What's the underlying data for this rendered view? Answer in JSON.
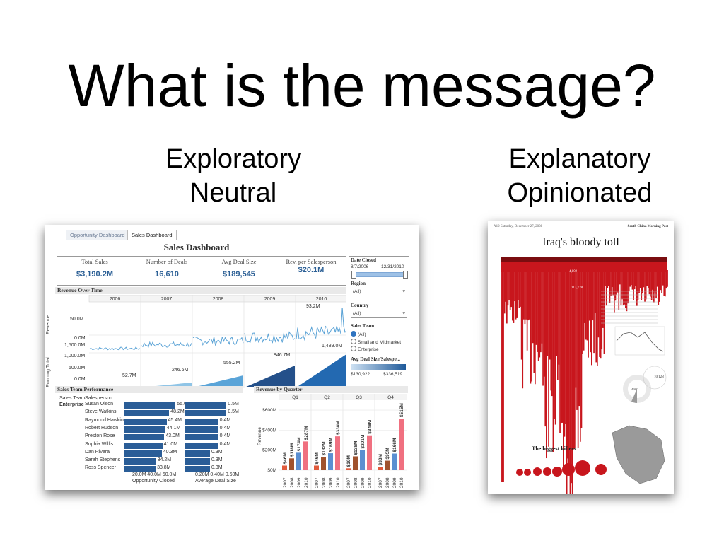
{
  "slide": {
    "title": "What is the message?",
    "left": {
      "line1": "Exploratory",
      "line2": "Neutral"
    },
    "right": {
      "line1": "Explanatory",
      "line2": "Opinionated"
    }
  },
  "dashboard": {
    "tabs": [
      "Opportunity Dashboard",
      "Sales Dashboard"
    ],
    "title": "Sales Dashboard",
    "kpis": [
      {
        "label": "Total Sales",
        "value": "$3,190.2M"
      },
      {
        "label": "Number of Deals",
        "value": "16,610"
      },
      {
        "label": "Avg Deal Size",
        "value": "$189,545"
      },
      {
        "label": "Rev. per Salesperson",
        "value": "$20.1M"
      }
    ],
    "revenue_over_time": {
      "title": "Revenue Over Time",
      "years": [
        "2006",
        "2007",
        "2008",
        "2009",
        "2010"
      ],
      "revenue_axis_label": "Revenue",
      "revenue_ticks": [
        "50.0M",
        "0.0M"
      ],
      "peak_label": "93.2M",
      "running_axis_label": "Running Total",
      "running_ticks": [
        "1,500.0M",
        "1,000.0M",
        "500.0M",
        "0.0M"
      ],
      "running_totals": [
        "52.7M",
        "246.6M",
        "555.2M",
        "846.7M",
        "1,489.0M"
      ]
    },
    "filters": {
      "date_closed": {
        "label": "Date Closed",
        "start": "8/7/2006",
        "end": "12/31/2010"
      },
      "region": {
        "label": "Region",
        "value": "(All)"
      },
      "country": {
        "label": "Country",
        "value": "(All)"
      },
      "sales_team": {
        "label": "Sales Team",
        "options": [
          "(All)",
          "Small and Midmarket",
          "Enterprise"
        ],
        "selected": "(All)"
      },
      "avg_deal": {
        "label": "Avg Deal Size/Salespe...",
        "min": "$130,922",
        "max": "$336,519"
      }
    },
    "team_performance": {
      "title": "Sales Team Performance",
      "col1": "Sales Team",
      "col2": "Salesperson",
      "team": "Enterprise",
      "rows": [
        {
          "name": "Susan Olson",
          "opp": "55.0M",
          "deal": "0.5M"
        },
        {
          "name": "Steve Watkins",
          "opp": "48.2M",
          "deal": "0.5M"
        },
        {
          "name": "Raymond Hawkins",
          "opp": "45.4M",
          "deal": "0.4M"
        },
        {
          "name": "Robert Hudson",
          "opp": "44.1M",
          "deal": "0.4M"
        },
        {
          "name": "Preston Rose",
          "opp": "43.0M",
          "deal": "0.4M"
        },
        {
          "name": "Sophia Willis",
          "opp": "41.0M",
          "deal": "0.4M"
        },
        {
          "name": "Dan Rivera",
          "opp": "40.3M",
          "deal": "0.3M"
        },
        {
          "name": "Sarah Stephens",
          "opp": "34.2M",
          "deal": "0.3M"
        },
        {
          "name": "Ross Spencer",
          "opp": "33.8M",
          "deal": "0.3M"
        }
      ],
      "axis1_ticks": "20.0M 40.0M 60.0M",
      "axis1_label": "Opportunity Closed",
      "axis2_ticks": "0.20M 0.40M 0.60M",
      "axis2_label": "Average Deal Size"
    },
    "revenue_by_quarter": {
      "title": "Revenue by Quarter",
      "quarters": [
        "Q1",
        "Q2",
        "Q3",
        "Q4"
      ],
      "years": [
        "2007",
        "2008",
        "2009",
        "2010"
      ],
      "ylabel": "Revenue",
      "yticks": [
        "$600M",
        "$400M",
        "$200M",
        "$0M"
      ]
    }
  },
  "chart_data": {
    "type": "bar",
    "title": "Revenue by Quarter",
    "ylabel": "Revenue",
    "ylim": [
      0,
      600
    ],
    "categories": [
      "Q1 2007",
      "Q1 2008",
      "Q1 2009",
      "Q1 2010",
      "Q2 2007",
      "Q2 2008",
      "Q2 2009",
      "Q2 2010",
      "Q3 2007",
      "Q3 2008",
      "Q3 2009",
      "Q3 2010",
      "Q4 2007",
      "Q4 2008",
      "Q4 2009",
      "Q4 2010"
    ],
    "values": [
      46,
      118,
      174,
      287,
      46,
      132,
      169,
      338,
      19,
      138,
      201,
      348,
      33,
      95,
      166,
      300
    ],
    "labels": [
      "$46M",
      "$118M",
      "$174M",
      "$287M",
      "$46M",
      "$132M",
      "$169M",
      "$338M",
      "$19M",
      "$138M",
      "$201M",
      "$348M",
      "$33M",
      "$95M",
      "$166M",
      "$300M"
    ],
    "last_bar_label": "$515M",
    "last_bar_value": 515,
    "colors": [
      "#e05a3c",
      "#a0522d",
      "#5b8fd1",
      "#f07080"
    ]
  },
  "poster": {
    "title": "Iraq's bloody toll",
    "header_left": "A12  Saturday, December 27, 2008",
    "header_right": "South China Morning Post",
    "killers_title": "The biggest killers",
    "donut_value": "4,802",
    "side_value": "10,128",
    "annot1": "4,802",
    "annot2": "113,728",
    "main_color": "#c8161d"
  }
}
